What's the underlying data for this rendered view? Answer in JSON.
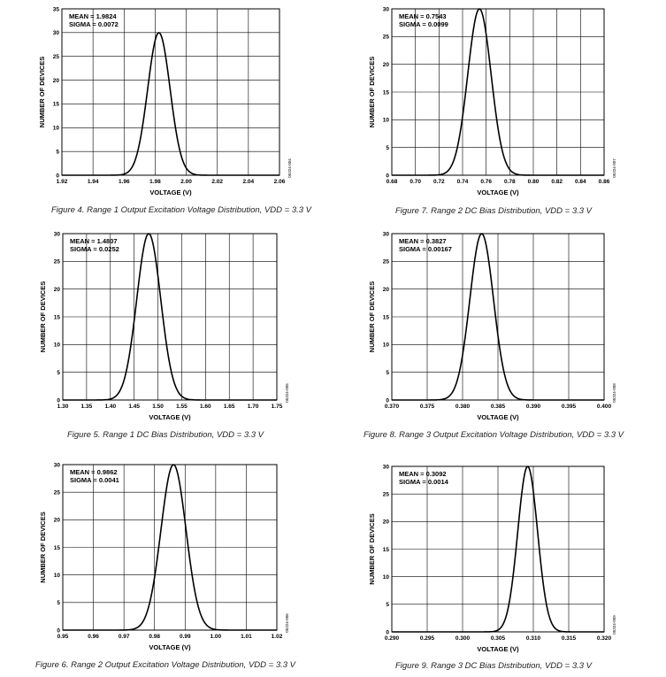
{
  "chart_data": [
    {
      "type": "line",
      "figure": "Figure 4",
      "caption": "Figure 4. Range 1 Output Excitation Voltage Distribution, VDD = 3.3 V",
      "xlabel": "VOLTAGE (V)",
      "ylabel": "NUMBER OF DEVICES",
      "xlim": [
        1.92,
        2.06
      ],
      "ylim": [
        0,
        35
      ],
      "xticks": [
        "1.92",
        "1.94",
        "1.96",
        "1.98",
        "2.00",
        "2.02",
        "2.04",
        "2.06"
      ],
      "yticks": [
        "0",
        "5",
        "10",
        "15",
        "20",
        "25",
        "30",
        "35"
      ],
      "mean_label": "MEAN = 1.9824",
      "sigma_label": "SIGMA = 0.0072",
      "mean": 1.9824,
      "sigma": 0.0072,
      "peak": 30,
      "code": "05324-004",
      "grid": true
    },
    {
      "type": "line",
      "figure": "Figure 7",
      "caption": "Figure 7. Range 2 DC Bias Distribution, VDD = 3.3 V",
      "xlabel": "VOLTAGE (V)",
      "ylabel": "NUMBER OF DEVICES",
      "xlim": [
        0.68,
        0.86
      ],
      "ylim": [
        0,
        30
      ],
      "xticks": [
        "0.68",
        "0.70",
        "0.72",
        "0.74",
        "0.76",
        "0.78",
        "0.80",
        "0.82",
        "0.84",
        "0.86"
      ],
      "yticks": [
        "0",
        "5",
        "10",
        "15",
        "20",
        "25",
        "30"
      ],
      "mean_label": "MEAN = 0.7543",
      "sigma_label": "SIGMA = 0.0099",
      "mean": 0.7543,
      "sigma": 0.0099,
      "peak": 30,
      "code": "05324-007",
      "grid": true
    },
    {
      "type": "line",
      "figure": "Figure 5",
      "caption": "Figure 5. Range 1 DC Bias Distribution, VDD = 3.3 V",
      "xlabel": "VOLTAGE (V)",
      "ylabel": "NUMBER OF DEVICES",
      "xlim": [
        1.3,
        1.75
      ],
      "ylim": [
        0,
        30
      ],
      "xticks": [
        "1.30",
        "1.35",
        "1.40",
        "1.45",
        "1.50",
        "1.55",
        "1.60",
        "1.65",
        "1.70",
        "1.75"
      ],
      "yticks": [
        "0",
        "5",
        "10",
        "15",
        "20",
        "25",
        "30"
      ],
      "mean_label": "MEAN = 1.4807",
      "sigma_label": "SIGMA = 0.0252",
      "mean": 1.4807,
      "sigma": 0.0252,
      "peak": 30,
      "code": "05324-005",
      "grid": true
    },
    {
      "type": "line",
      "figure": "Figure 8",
      "caption": "Figure 8. Range 3 Output Excitation Voltage Distribution, VDD = 3.3 V",
      "xlabel": "VOLTAGE (V)",
      "ylabel": "NUMBER OF DEVICES",
      "xlim": [
        0.37,
        0.4
      ],
      "ylim": [
        0,
        30
      ],
      "xticks": [
        "0.370",
        "0.375",
        "0.380",
        "0.385",
        "0.390",
        "0.395",
        "0.400"
      ],
      "yticks": [
        "0",
        "5",
        "10",
        "15",
        "20",
        "25",
        "30"
      ],
      "mean_label": "MEAN = 0.3827",
      "sigma_label": "SIGMA = 0.00167",
      "mean": 0.3827,
      "sigma": 0.00167,
      "peak": 30,
      "code": "05324-008",
      "grid": true
    },
    {
      "type": "line",
      "figure": "Figure 6",
      "caption": "Figure 6. Range 2 Output Excitation Voltage Distribution, VDD = 3.3 V",
      "xlabel": "VOLTAGE (V)",
      "ylabel": "NUMBER OF DEVICES",
      "xlim": [
        0.95,
        1.02
      ],
      "ylim": [
        0,
        30
      ],
      "xticks": [
        "0.95",
        "0.96",
        "0.97",
        "0.98",
        "0.99",
        "1.00",
        "1.01",
        "1.02"
      ],
      "yticks": [
        "0",
        "5",
        "10",
        "15",
        "20",
        "25",
        "30"
      ],
      "mean_label": "MEAN = 0.9862",
      "sigma_label": "SIGMA = 0.0041",
      "mean": 0.9862,
      "sigma": 0.0041,
      "peak": 30,
      "code": "05324-006",
      "grid": true
    },
    {
      "type": "line",
      "figure": "Figure 9",
      "caption": "Figure 9. Range 3 DC Bias Distribution, VDD = 3.3 V",
      "xlabel": "VOLTAGE (V)",
      "ylabel": "NUMBER OF DEVICES",
      "xlim": [
        0.29,
        0.32
      ],
      "ylim": [
        0,
        30
      ],
      "xticks": [
        "0.290",
        "0.295",
        "0.300",
        "0.305",
        "0.310",
        "0.315",
        "0.320"
      ],
      "yticks": [
        "0",
        "5",
        "10",
        "15",
        "20",
        "25",
        "30"
      ],
      "mean_label": "MEAN = 0.3092",
      "sigma_label": "SIGMA = 0.0014",
      "mean": 0.3092,
      "sigma": 0.0014,
      "peak": 30,
      "code": "05324-009",
      "grid": true
    }
  ]
}
